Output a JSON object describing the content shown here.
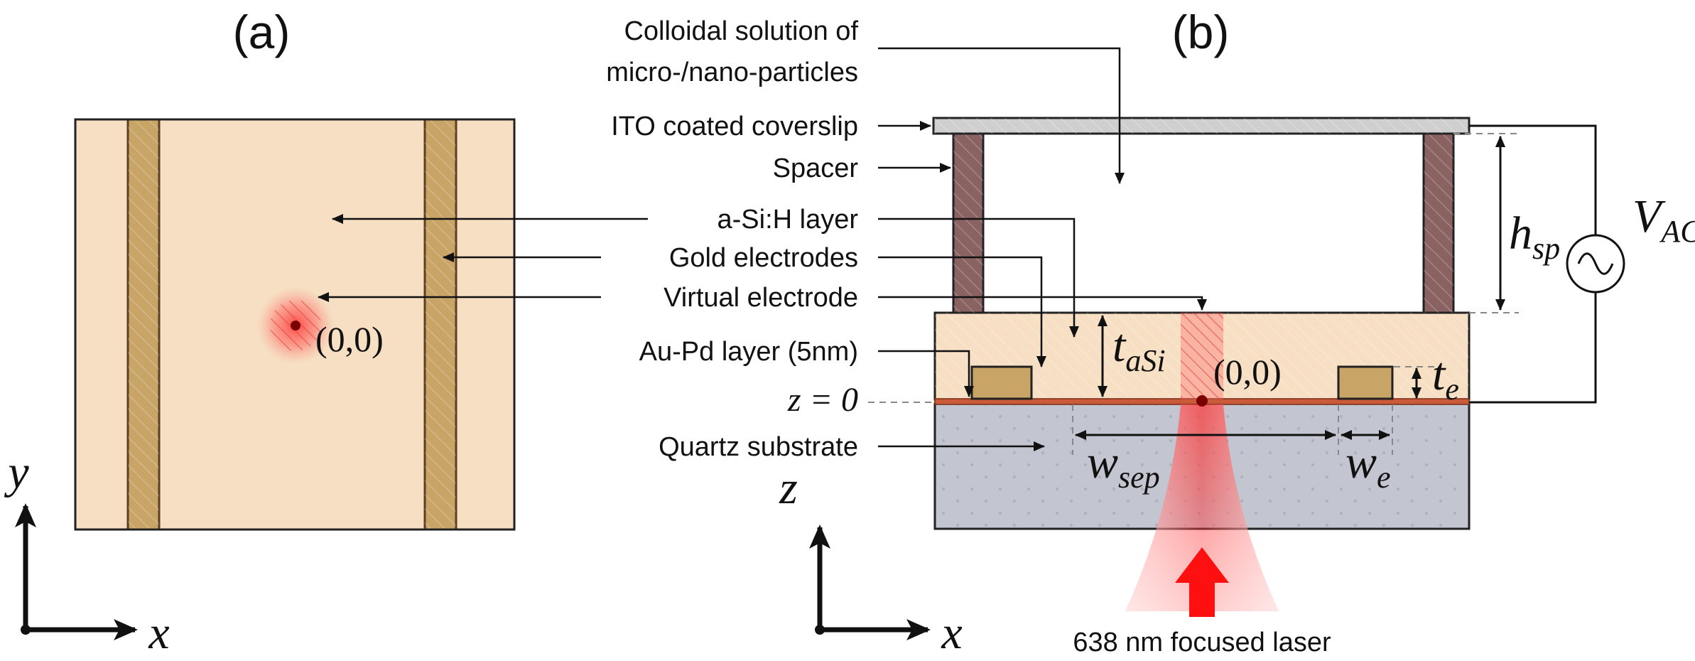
{
  "panels": {
    "a": "(a)",
    "b": "(b)"
  },
  "labels": {
    "colloid_line1": "Colloidal solution of",
    "colloid_line2": "micro-/nano-particles",
    "ito": "ITO coated coverslip",
    "spacer": "Spacer",
    "asi": "a-Si:H layer",
    "gold": "Gold electrodes",
    "virtual": "Virtual electrode",
    "aupd": "Au-Pd layer (5nm)",
    "z0": "z = 0",
    "quartz": "Quartz substrate",
    "laser": "638 nm focused laser"
  },
  "math": {
    "origin_a": "(0,0)",
    "origin_b": "(0,0)",
    "axis_y": "y",
    "axis_x_a": "x",
    "axis_z": "z",
    "axis_x_b": "x",
    "t_asi_main": "t",
    "t_asi_sub": "aSi",
    "t_e_main": "t",
    "t_e_sub": "e",
    "h_sp_main": "h",
    "h_sp_sub": "sp",
    "v_ac_main": "V",
    "v_ac_sub": "AC",
    "w_sep_main": "w",
    "w_sep_sub": "sep",
    "w_e_main": "w",
    "w_e_sub": "e"
  },
  "colors": {
    "asi": "#f6dfc2",
    "electrode": "#c8a466",
    "electrode_edge": "#5a4020",
    "spacer": "#8a6262",
    "ito": "#cfcfcf",
    "quartz": "#c3c6d0",
    "aupd": "#c95a3a",
    "laser": "#ff2020",
    "arrow": "#111111"
  }
}
